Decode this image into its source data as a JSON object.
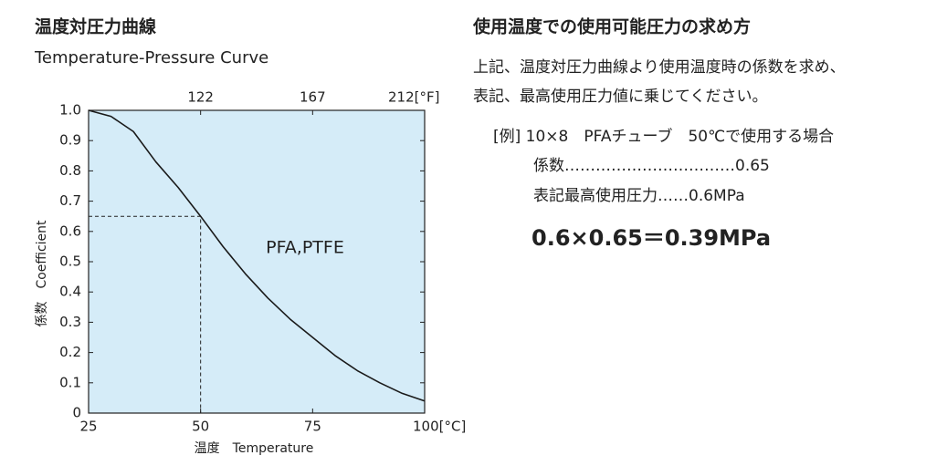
{
  "chart_data": {
    "type": "line",
    "title": "温度対圧力曲線",
    "subtitle": "Temperature-Pressure Curve",
    "x_label": "温度　Temperature",
    "y_label": "係数　Coefficient",
    "x": [
      25,
      30,
      35,
      40,
      45,
      50,
      55,
      60,
      65,
      70,
      75,
      80,
      85,
      90,
      95,
      100
    ],
    "series": [
      {
        "name": "PFA,PTFE",
        "color": "#1a1a1a",
        "values": [
          1.0,
          0.98,
          0.93,
          0.83,
          0.745,
          0.65,
          0.55,
          0.46,
          0.38,
          0.31,
          0.25,
          0.19,
          0.14,
          0.1,
          0.065,
          0.04
        ]
      }
    ],
    "xlim": [
      25,
      100
    ],
    "xticks": [
      25,
      50,
      75,
      {
        "value": 100,
        "label": "100[°C]"
      }
    ],
    "x2ticks": [
      {
        "value": 50,
        "label": "122"
      },
      {
        "value": 75,
        "label": "167"
      },
      {
        "value": 100,
        "label": "212[°F]"
      }
    ],
    "ylim": [
      0,
      1
    ],
    "yticks": [
      0,
      0.1,
      0.2,
      0.3,
      0.4,
      0.5,
      0.6,
      0.7,
      0.8,
      0.9,
      {
        "value": 1,
        "label": "1.0"
      }
    ],
    "reference": {
      "x": 50,
      "y": 0.65
    },
    "background": "#d5ecf8"
  },
  "document": {
    "heading": "使用温度での使用可能圧力の求め方",
    "body": [
      "上記、温度対圧力曲線より使用温度時の係数を求め、",
      "表記、最高使用圧力値に乗じてください。"
    ],
    "example": "[例] 10×8　PFAチューブ　50℃で使用する場合",
    "lines": [
      "係数……………………………0.65",
      "表記最高使用圧力……0.6MPa"
    ],
    "result": "0.6×0.65＝0.39MPa"
  }
}
